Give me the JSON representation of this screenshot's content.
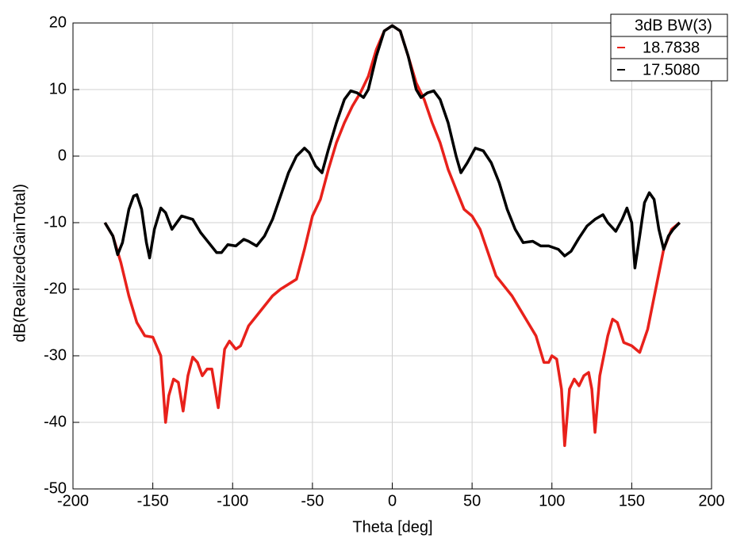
{
  "chart_data": {
    "type": "line",
    "xlabel": "Theta [deg]",
    "ylabel": "dB(RealizedGainTotal)",
    "xlim": [
      -200,
      200
    ],
    "xticks": [
      -200,
      -150,
      -100,
      -50,
      0,
      50,
      100,
      150,
      200
    ],
    "ylim": [
      -50,
      20
    ],
    "yticks": [
      -50,
      -40,
      -30,
      -20,
      -10,
      0,
      10,
      20
    ],
    "grid": true,
    "legend_title": "3dB BW(3)",
    "legend_position": "upper right",
    "series": [
      {
        "name": "18.7838",
        "color": "#e8211b",
        "x": [
          -180,
          -175,
          -170,
          -165,
          -160,
          -155,
          -150,
          -145,
          -142,
          -140,
          -137,
          -134,
          -131,
          -128,
          -125,
          -122,
          -119,
          -116,
          -113,
          -109,
          -105,
          -102,
          -98,
          -95,
          -90,
          -85,
          -80,
          -75,
          -70,
          -60,
          -55,
          -50,
          -45,
          -40,
          -35,
          -30,
          -25,
          -20,
          -15,
          -10,
          -5,
          0,
          5,
          10,
          15,
          20,
          25,
          30,
          35,
          40,
          45,
          50,
          55,
          60,
          65,
          70,
          75,
          80,
          85,
          90,
          95,
          98,
          100,
          103,
          106,
          108,
          111,
          114,
          117,
          120,
          123,
          125,
          127,
          130,
          135,
          138,
          141,
          145,
          150,
          155,
          160,
          165,
          170,
          175,
          180
        ],
        "values": [
          -10,
          -12,
          -16,
          -21,
          -25,
          -27,
          -27.2,
          -30,
          -40,
          -36,
          -33.5,
          -34,
          -38.3,
          -33,
          -30.2,
          -31,
          -33,
          -32,
          -32,
          -37.8,
          -29,
          -27.8,
          -29,
          -28.5,
          -25.5,
          -24,
          -22.5,
          -21,
          -20,
          -18.5,
          -14,
          -9,
          -6.5,
          -2,
          2,
          5,
          7.5,
          9.5,
          12,
          16,
          18.8,
          19.6,
          18.8,
          15,
          11,
          8.5,
          5,
          2,
          -2,
          -5,
          -8,
          -9,
          -11,
          -14.5,
          -18,
          -19.5,
          -21,
          -23,
          -25,
          -27,
          -31,
          -31,
          -30,
          -30.5,
          -35,
          -43.5,
          -35,
          -33.5,
          -34.5,
          -33,
          -32.5,
          -35,
          -41.5,
          -33,
          -27,
          -24.5,
          -25,
          -28,
          -28.5,
          -29.5,
          -26,
          -20,
          -14,
          -11,
          -10
        ]
      },
      {
        "name": "17.5080",
        "color": "#000000",
        "x": [
          -180,
          -175,
          -172,
          -169,
          -165,
          -162,
          -160,
          -157,
          -154,
          -152,
          -149,
          -145,
          -142,
          -138,
          -135,
          -132,
          -125,
          -120,
          -115,
          -110,
          -107,
          -103,
          -98,
          -93,
          -90,
          -85,
          -80,
          -75,
          -70,
          -65,
          -60,
          -55,
          -52,
          -48,
          -44,
          -40,
          -35,
          -30,
          -26,
          -22,
          -18,
          -15,
          -10,
          -5,
          0,
          5,
          10,
          15,
          18,
          22,
          26,
          30,
          35,
          40,
          43,
          47,
          52,
          57,
          62,
          67,
          72,
          77,
          82,
          88,
          93,
          98,
          104,
          108,
          112,
          117,
          122,
          127,
          132,
          135,
          140,
          144,
          147,
          150,
          152,
          155,
          158,
          161,
          164,
          167,
          170,
          173,
          176,
          180
        ],
        "values": [
          -10,
          -12,
          -14.8,
          -13,
          -8,
          -6,
          -5.8,
          -8,
          -13,
          -15.3,
          -11,
          -7.8,
          -8.5,
          -11,
          -10,
          -9,
          -9.5,
          -11.5,
          -13,
          -14.5,
          -14.5,
          -13.3,
          -13.5,
          -12.5,
          -12.8,
          -13.5,
          -12,
          -9.5,
          -6,
          -2.5,
          0,
          1.2,
          0.5,
          -1.5,
          -2.5,
          1,
          5,
          8.5,
          9.8,
          9.5,
          8.8,
          10,
          15,
          18.8,
          19.6,
          18.8,
          15,
          10,
          8.8,
          9.5,
          9.8,
          8.5,
          5,
          0,
          -2.5,
          -1,
          1.2,
          0.8,
          -1,
          -4,
          -8,
          -11,
          -13,
          -12.8,
          -13.5,
          -13.5,
          -14,
          -15,
          -14.3,
          -12.3,
          -10.5,
          -9.5,
          -8.8,
          -10,
          -11.3,
          -9.5,
          -7.8,
          -10,
          -16.8,
          -12,
          -7,
          -5.5,
          -6.5,
          -11,
          -14,
          -12,
          -11,
          -10
        ]
      }
    ]
  }
}
